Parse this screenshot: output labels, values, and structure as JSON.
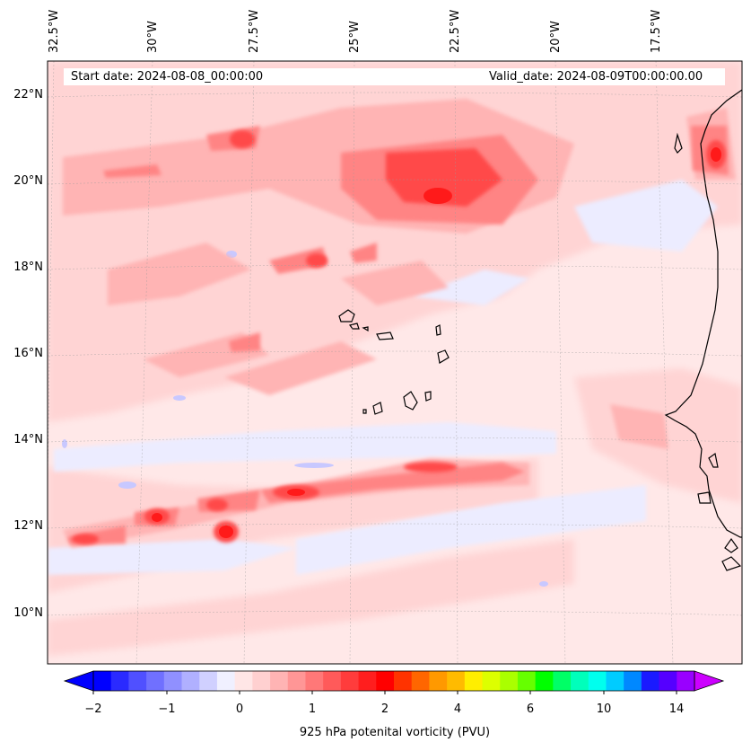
{
  "header": {
    "start_date": "Start date: 2024-08-08_00:00:00",
    "valid_date": "Valid_date: 2024-08-09T00:00:00.00"
  },
  "axes": {
    "longitude_labels": [
      "32.5°W",
      "30°W",
      "27.5°W",
      "25°W",
      "22.5°W",
      "20°W",
      "17.5°W"
    ],
    "latitude_labels": [
      "22°N",
      "20°N",
      "18°N",
      "16°N",
      "14°N",
      "12°N",
      "10°N"
    ]
  },
  "colorbar": {
    "label": "925 hPa potenital vorticity (PVU)",
    "tick_labels": [
      "−2",
      "−1",
      "0",
      "1",
      "2",
      "4",
      "6",
      "10",
      "14"
    ],
    "colors": [
      "#0000ff",
      "#2a2aff",
      "#5050ff",
      "#7070ff",
      "#9090ff",
      "#b0b0ff",
      "#d0d0ff",
      "#f0f0ff",
      "#ffe6e6",
      "#ffd0d0",
      "#ffb4b4",
      "#ff9696",
      "#ff7878",
      "#ff5a5a",
      "#ff3c3c",
      "#ff1e1e",
      "#ff0000",
      "#ff3300",
      "#ff6600",
      "#ff9900",
      "#ffbb00",
      "#ffee00",
      "#ddff00",
      "#aaff00",
      "#66ff00",
      "#00ff00",
      "#00ff66",
      "#00ffbb",
      "#00ffee",
      "#00ccff",
      "#0088ff",
      "#1a1aff",
      "#5500ff",
      "#9900ff"
    ],
    "under_color": "#0000ff",
    "over_color": "#cc00ff"
  },
  "field_colors": {
    "background": "#ffe8e8",
    "light": "#ffd6d6",
    "medium": "#ffb0b0",
    "strong": "#ff8080",
    "intense": "#ff4a4a",
    "peak": "#ff1a1a",
    "negative": "#ececff",
    "negative_strong": "#c8c8ff"
  }
}
